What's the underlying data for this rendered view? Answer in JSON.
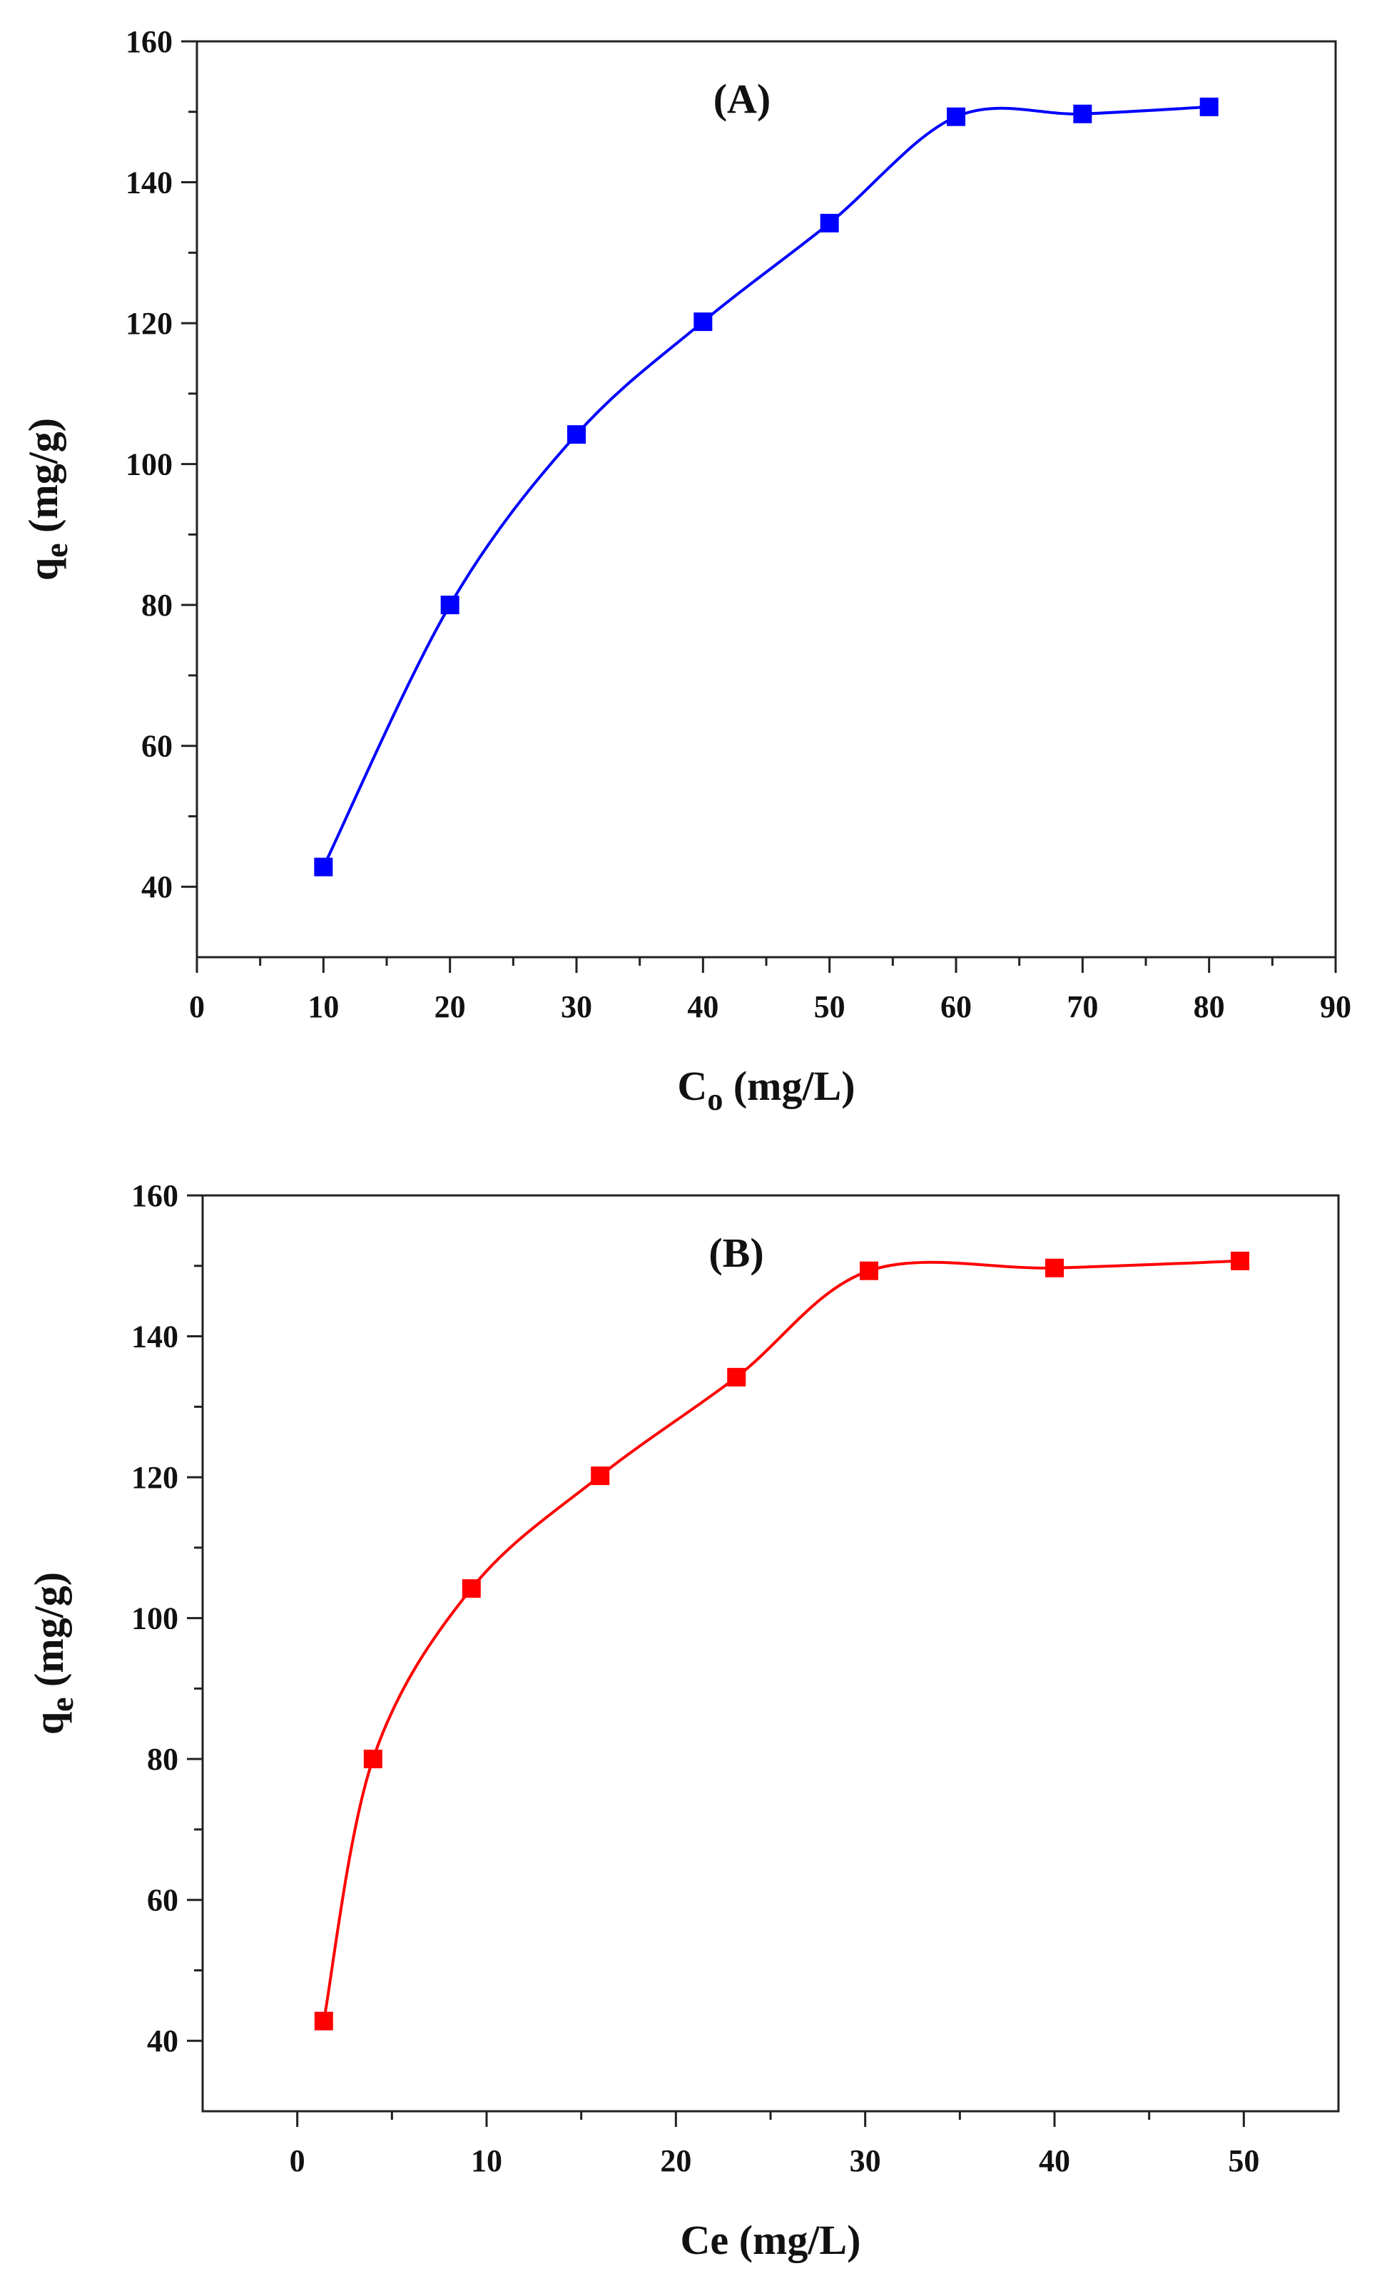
{
  "chart_data": [
    {
      "type": "line",
      "panel_label": "(A)",
      "title": "",
      "xlabel": "C",
      "xlabel_sub": "o",
      "xlabel_unit": " (mg/L)",
      "ylabel": "q",
      "ylabel_sub": "e",
      "ylabel_unit": " (mg/g)",
      "xlim": [
        0,
        90
      ],
      "ylim": [
        30,
        160
      ],
      "xticks": [
        0,
        10,
        20,
        30,
        40,
        50,
        60,
        70,
        80,
        90
      ],
      "yticks": [
        40,
        60,
        80,
        100,
        120,
        140,
        160
      ],
      "grid": false,
      "series": [
        {
          "name": "qe vs Co",
          "color": "#0000ff",
          "marker": "square",
          "x": [
            10,
            20,
            30,
            40,
            50,
            60,
            70,
            80
          ],
          "y": [
            42.8,
            80.0,
            104.2,
            120.2,
            134.2,
            149.3,
            149.7,
            150.7
          ]
        }
      ]
    },
    {
      "type": "line",
      "panel_label": "(B)",
      "title": "",
      "xlabel": "Ce",
      "xlabel_sub": "",
      "xlabel_unit": " (mg/L)",
      "ylabel": "q",
      "ylabel_sub": "e",
      "ylabel_unit": " (mg/g)",
      "xlim": [
        -5,
        55
      ],
      "ylim": [
        30,
        160
      ],
      "xticks": [
        0,
        10,
        20,
        30,
        40,
        50
      ],
      "yticks": [
        40,
        60,
        80,
        100,
        120,
        140,
        160
      ],
      "grid": false,
      "series": [
        {
          "name": "qe vs Ce",
          "color": "#ff0000",
          "marker": "square",
          "x": [
            1.4,
            4.0,
            9.2,
            16.0,
            23.2,
            30.2,
            40.0,
            49.8
          ],
          "y": [
            42.8,
            80.0,
            104.2,
            120.2,
            134.2,
            149.3,
            149.7,
            150.7
          ]
        }
      ]
    }
  ]
}
